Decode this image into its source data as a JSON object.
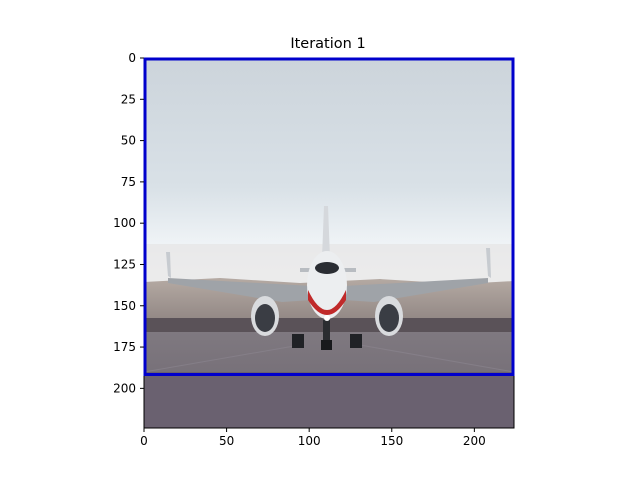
{
  "figure": {
    "title": "Iteration 1",
    "image_description_icon": "airplane-photo"
  },
  "chart_data": {
    "type": "image",
    "title": "Iteration 1",
    "image_extent": {
      "x": [
        0,
        224
      ],
      "y": [
        0,
        224
      ]
    },
    "xlim": [
      0,
      224
    ],
    "ylim": [
      224,
      0
    ],
    "x_ticks": [
      0,
      50,
      100,
      150,
      200
    ],
    "y_ticks": [
      0,
      25,
      50,
      75,
      100,
      125,
      150,
      175,
      200
    ],
    "x_tick_labels": [
      "0",
      "50",
      "100",
      "150",
      "200"
    ],
    "y_tick_labels": [
      "0",
      "25",
      "50",
      "75",
      "100",
      "125",
      "150",
      "175",
      "200"
    ],
    "bounding_box": {
      "x_min": 0,
      "y_min": 0,
      "x_max": 224,
      "y_max": 191,
      "color": "#0000cc"
    },
    "grid": false
  }
}
